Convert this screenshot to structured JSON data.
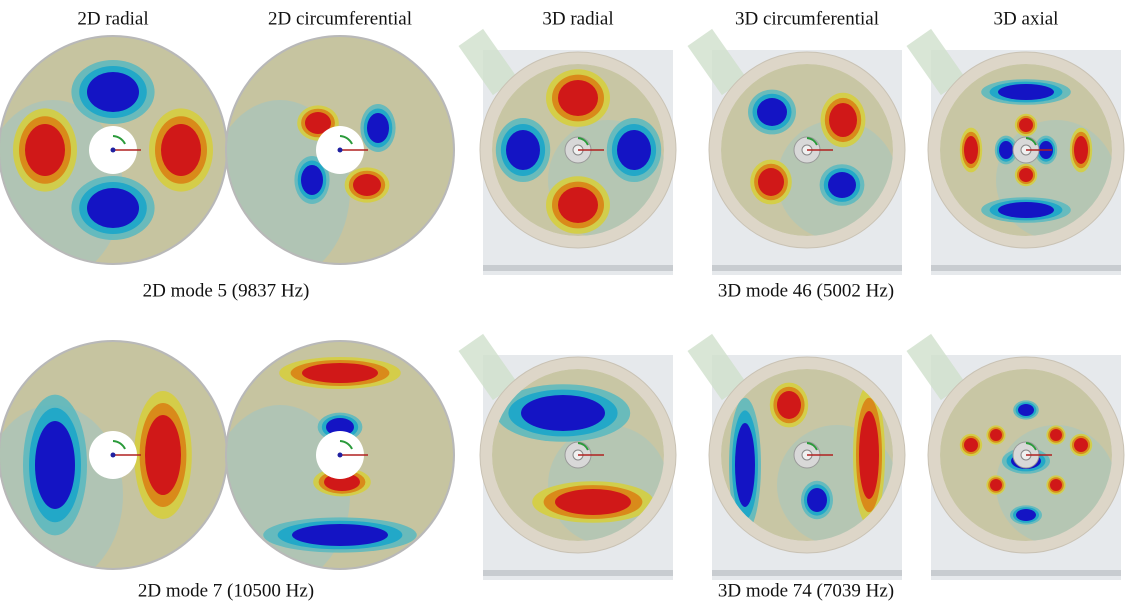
{
  "columns": [
    "2D radial",
    "2D circumferential",
    "3D radial",
    "3D circumferential",
    "3D axial"
  ],
  "rows": [
    {
      "captions": [
        "2D mode 5 (9837 Hz)",
        "3D mode 46 (5002 Hz)"
      ]
    },
    {
      "captions": [
        "2D mode 7 (10500 Hz)",
        "3D mode 74 (7039 Hz)"
      ]
    }
  ]
}
